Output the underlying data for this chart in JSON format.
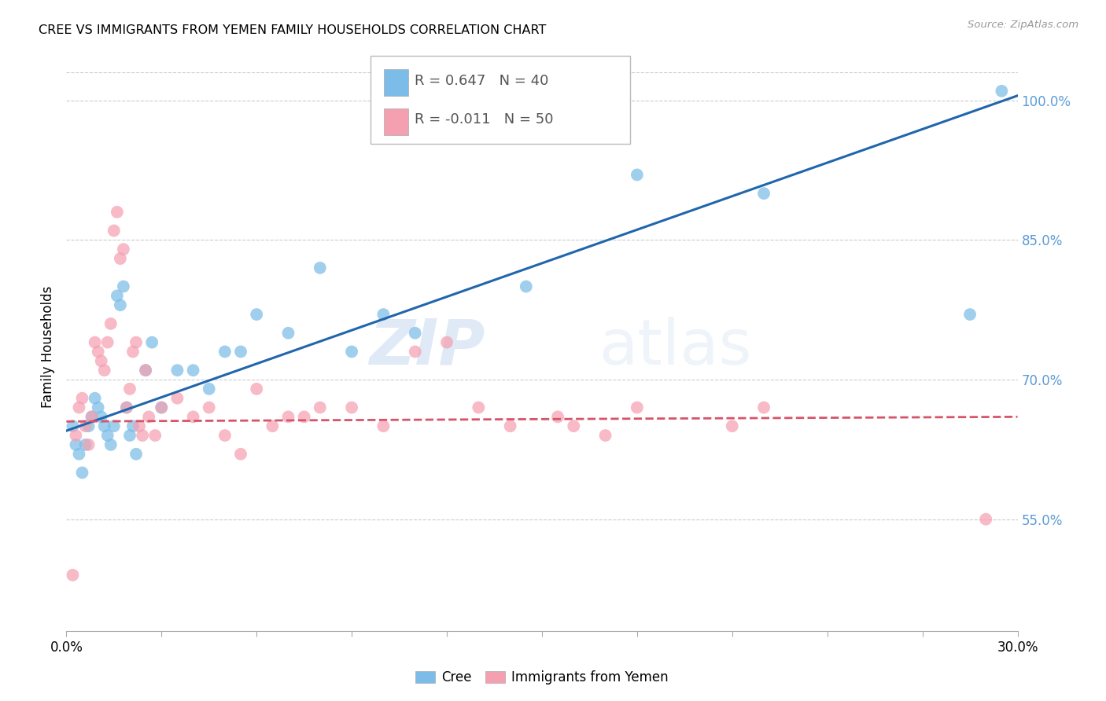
{
  "title": "CREE VS IMMIGRANTS FROM YEMEN FAMILY HOUSEHOLDS CORRELATION CHART",
  "source": "Source: ZipAtlas.com",
  "ylabel": "Family Households",
  "ylabel_right_ticks": [
    55.0,
    70.0,
    85.0,
    100.0
  ],
  "ylabel_right_labels": [
    "55.0%",
    "70.0%",
    "85.0%",
    "100.0%"
  ],
  "xmin": 0.0,
  "xmax": 30.0,
  "ymin": 43.0,
  "ymax": 104.0,
  "legend_label_cree": "Cree",
  "legend_label_yemen": "Immigrants from Yemen",
  "color_cree": "#7bbde8",
  "color_yemen": "#f4a0b0",
  "color_trend_cree": "#2166ac",
  "color_trend_yemen": "#d6546a",
  "background_color": "#ffffff",
  "grid_color": "#cccccc",
  "watermark_zip": "ZIP",
  "watermark_atlas": "atlas",
  "cree_x": [
    0.2,
    0.3,
    0.4,
    0.5,
    0.6,
    0.7,
    0.8,
    0.9,
    1.0,
    1.1,
    1.2,
    1.3,
    1.4,
    1.5,
    1.6,
    1.7,
    1.8,
    1.9,
    2.0,
    2.1,
    2.2,
    2.5,
    2.7,
    3.0,
    3.5,
    4.0,
    4.5,
    5.0,
    5.5,
    6.0,
    7.0,
    8.0,
    9.0,
    10.0,
    11.0,
    14.5,
    18.0,
    22.0,
    28.5,
    29.5
  ],
  "cree_y": [
    65,
    63,
    62,
    60,
    63,
    65,
    66,
    68,
    67,
    66,
    65,
    64,
    63,
    65,
    79,
    78,
    80,
    67,
    64,
    65,
    62,
    71,
    74,
    67,
    71,
    71,
    69,
    73,
    73,
    77,
    75,
    82,
    73,
    77,
    75,
    80,
    92,
    90,
    77,
    101
  ],
  "yemen_x": [
    0.2,
    0.3,
    0.4,
    0.5,
    0.6,
    0.7,
    0.8,
    0.9,
    1.0,
    1.1,
    1.2,
    1.3,
    1.4,
    1.5,
    1.6,
    1.7,
    1.8,
    1.9,
    2.0,
    2.1,
    2.2,
    2.3,
    2.4,
    2.5,
    2.6,
    2.8,
    3.0,
    3.5,
    4.0,
    4.5,
    5.0,
    5.5,
    6.0,
    6.5,
    7.0,
    7.5,
    8.0,
    9.0,
    10.0,
    11.0,
    12.0,
    13.0,
    14.0,
    15.5,
    16.0,
    17.0,
    18.0,
    21.0,
    22.0,
    29.0
  ],
  "yemen_y": [
    49,
    64,
    67,
    68,
    65,
    63,
    66,
    74,
    73,
    72,
    71,
    74,
    76,
    86,
    88,
    83,
    84,
    67,
    69,
    73,
    74,
    65,
    64,
    71,
    66,
    64,
    67,
    68,
    66,
    67,
    64,
    62,
    69,
    65,
    66,
    66,
    67,
    67,
    65,
    73,
    74,
    67,
    65,
    66,
    65,
    64,
    67,
    65,
    67,
    55
  ]
}
